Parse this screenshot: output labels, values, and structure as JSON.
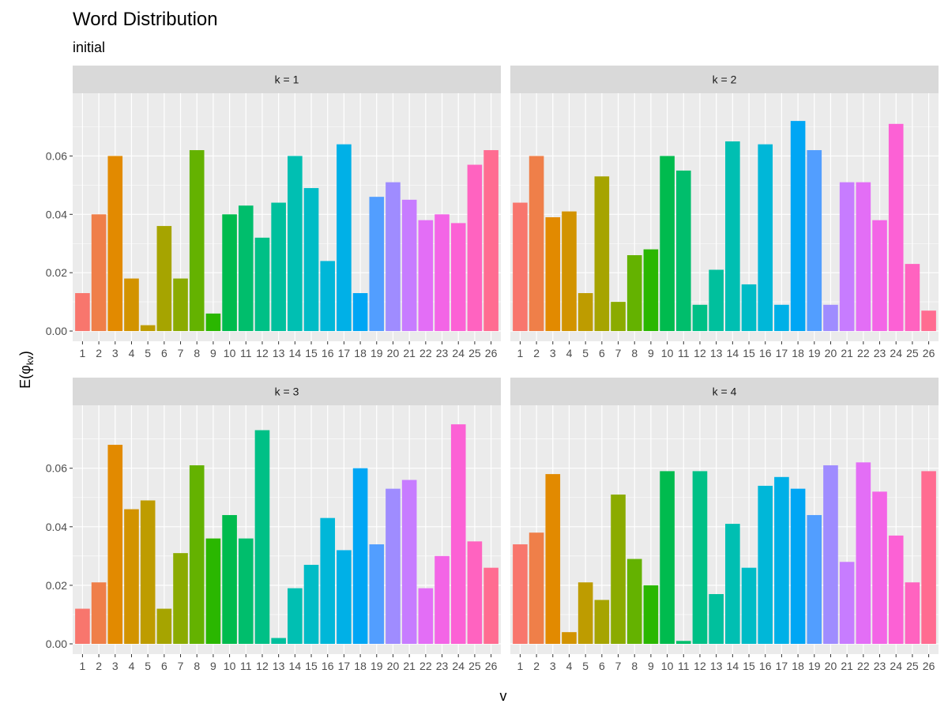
{
  "chart_data": {
    "type": "bar",
    "title": "Word Distribution",
    "subtitle": "initial",
    "xlabel": "v",
    "ylabel": "E(φkv)",
    "ylabel_main": "E(",
    "ylabel_phi": "φ",
    "ylabel_sub": "kv",
    "ylabel_close": ")",
    "ylim": [
      0,
      0.078
    ],
    "y_ticks": [
      0.0,
      0.02,
      0.04,
      0.06
    ],
    "y_tick_labels": [
      "0.00",
      "0.02",
      "0.04",
      "0.06"
    ],
    "categories": [
      "1",
      "2",
      "3",
      "4",
      "5",
      "6",
      "7",
      "8",
      "9",
      "10",
      "11",
      "12",
      "13",
      "14",
      "15",
      "16",
      "17",
      "18",
      "19",
      "20",
      "21",
      "22",
      "23",
      "24",
      "25",
      "26"
    ],
    "grid": true,
    "legend": "none",
    "panel_background": "#ebebeb",
    "strip_background": "#d9d9d9",
    "grid_color": "#ffffff",
    "bar_colors": [
      "#F8766D",
      "#EF7F49",
      "#E28A00",
      "#D29300",
      "#BE9C00",
      "#A6A400",
      "#8BAB00",
      "#64B200",
      "#2AB700",
      "#00BB4E",
      "#00BE6C",
      "#00C086",
      "#00C09D",
      "#00BFB2",
      "#00BCC6",
      "#00B7D8",
      "#00B0E7",
      "#00A6F4",
      "#529EFF",
      "#9F8CFF",
      "#C77CFF",
      "#E36EF6",
      "#F365E6",
      "#FC61D5",
      "#FF63C0",
      "#FF6C91"
    ],
    "panels": [
      {
        "label": "k = 1",
        "values": [
          0.013,
          0.04,
          0.06,
          0.018,
          0.002,
          0.036,
          0.018,
          0.062,
          0.006,
          0.04,
          0.043,
          0.032,
          0.044,
          0.06,
          0.049,
          0.024,
          0.064,
          0.013,
          0.046,
          0.051,
          0.045,
          0.038,
          0.04,
          0.037,
          0.057,
          0.062
        ]
      },
      {
        "label": "k = 2",
        "values": [
          0.044,
          0.06,
          0.039,
          0.041,
          0.013,
          0.053,
          0.01,
          0.026,
          0.028,
          0.06,
          0.055,
          0.009,
          0.021,
          0.065,
          0.016,
          0.064,
          0.009,
          0.072,
          0.062,
          0.009,
          0.051,
          0.051,
          0.038,
          0.071,
          0.023,
          0.007
        ]
      },
      {
        "label": "k = 3",
        "values": [
          0.012,
          0.021,
          0.068,
          0.046,
          0.049,
          0.012,
          0.031,
          0.061,
          0.036,
          0.044,
          0.036,
          0.073,
          0.002,
          0.019,
          0.027,
          0.043,
          0.032,
          0.06,
          0.034,
          0.053,
          0.056,
          0.019,
          0.03,
          0.075,
          0.035,
          0.026
        ]
      },
      {
        "label": "k = 4",
        "values": [
          0.034,
          0.038,
          0.058,
          0.004,
          0.021,
          0.015,
          0.051,
          0.029,
          0.02,
          0.059,
          0.001,
          0.059,
          0.017,
          0.041,
          0.026,
          0.054,
          0.057,
          0.053,
          0.044,
          0.061,
          0.028,
          0.062,
          0.052,
          0.037,
          0.021,
          0.059
        ]
      }
    ]
  }
}
